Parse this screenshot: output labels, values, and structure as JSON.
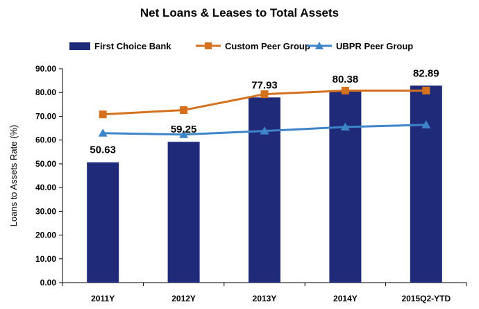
{
  "chart_data": {
    "type": "bar",
    "title": "Net Loans & Leases to Total Assets",
    "ylabel": "Loans to Assets Rate (%)",
    "xlabel": "",
    "ylim": [
      0,
      90
    ],
    "yticks": [
      "0.00",
      "10.00",
      "20.00",
      "30.00",
      "40.00",
      "50.00",
      "60.00",
      "70.00",
      "80.00",
      "90.00"
    ],
    "grid": false,
    "legend_position": "top",
    "categories": [
      "2011Y",
      "2012Y",
      "2013Y",
      "2014Y",
      "2015Q2-YTD"
    ],
    "series": [
      {
        "name": "First Choice Bank",
        "type": "bar",
        "color": "#1F2A78",
        "values": [
          50.63,
          59.25,
          77.93,
          80.38,
          82.89
        ],
        "labels": [
          "50.63",
          "59.25",
          "77.93",
          "80.38",
          "82.89"
        ]
      },
      {
        "name": "Custom Peer Group",
        "type": "line",
        "marker": "square",
        "color": "#D4711E",
        "values": [
          70.8,
          72.6,
          79.3,
          80.8,
          80.8
        ]
      },
      {
        "name": "UBPR Peer Group",
        "type": "line",
        "marker": "triangle",
        "color": "#3D85C8",
        "values": [
          62.9,
          62.3,
          63.8,
          65.5,
          66.4
        ]
      }
    ]
  }
}
